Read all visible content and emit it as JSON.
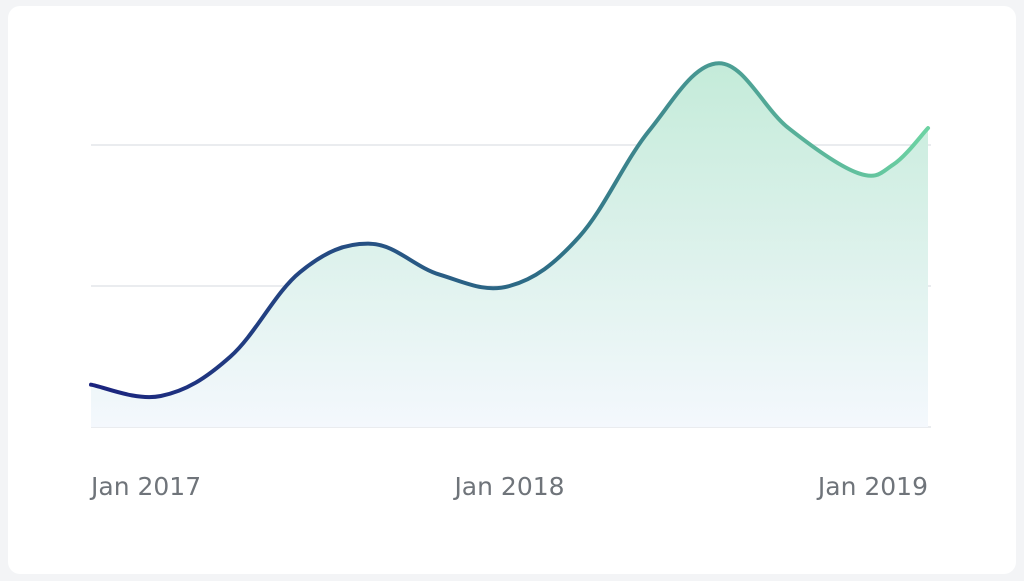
{
  "chart_data": {
    "type": "area",
    "title": "",
    "xlabel": "",
    "ylabel": "",
    "x_ticks": [
      "Jan 2017",
      "Jan 2018",
      "Jan 2019"
    ],
    "x_range": [
      "2017-01",
      "2019-01"
    ],
    "y_range": [
      0,
      3
    ],
    "grid": "horizontal",
    "gridlines": [
      0,
      1,
      2
    ],
    "legend": "none",
    "series": [
      {
        "points": [
          {
            "x": "2017-01",
            "y": 0.3
          },
          {
            "x": "2017-03",
            "y": 0.22
          },
          {
            "x": "2017-05",
            "y": 0.5
          },
          {
            "x": "2017-07",
            "y": 1.1
          },
          {
            "x": "2017-09",
            "y": 1.3
          },
          {
            "x": "2017-11",
            "y": 1.08
          },
          {
            "x": "2018-01",
            "y": 1.0
          },
          {
            "x": "2018-03",
            "y": 1.35
          },
          {
            "x": "2018-05",
            "y": 2.1
          },
          {
            "x": "2018-07",
            "y": 2.58
          },
          {
            "x": "2018-09",
            "y": 2.12
          },
          {
            "x": "2018-11",
            "y": 1.8
          },
          {
            "x": "2018-12",
            "y": 1.86
          },
          {
            "x": "2019-01",
            "y": 2.12
          }
        ]
      }
    ],
    "colors": {
      "line_start": "#1a237e",
      "line_mid": "#2e6f86",
      "line_end": "#6dd3a3",
      "fill_top": "#c4ebd9",
      "fill_bottom": "#f4f8fd",
      "gridline": "#e3e6ea",
      "tick_text": "#6f747a"
    }
  }
}
